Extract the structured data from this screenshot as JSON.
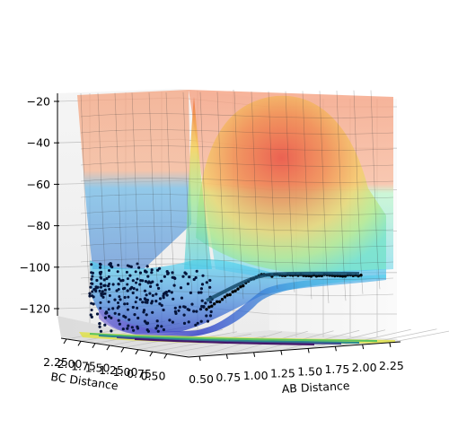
{
  "chart_data": {
    "type": "surface",
    "title": "",
    "xlabel": "AB Distance",
    "ylabel": "BC Distance",
    "zlabel": "",
    "x_ticks": [
      "0.50",
      "0.75",
      "1.00",
      "1.25",
      "1.50",
      "1.75",
      "2.00",
      "2.25"
    ],
    "y_ticks": [
      "2.25",
      "2.00",
      "1.75",
      "1.50",
      "1.25",
      "1.00",
      "0.75",
      "0.50"
    ],
    "y_ticks_display": [
      "2.25",
      "2.00",
      "1.75",
      "1.50",
      "1.25",
      "1.00",
      "0.75",
      "0.50"
    ],
    "z_ticks": [
      "−20",
      "−40",
      "−60",
      "−80",
      "−100",
      "−120"
    ],
    "z_tick_values": [
      -20,
      -40,
      -60,
      -80,
      -100,
      -120
    ],
    "xlim": [
      0.4,
      2.35
    ],
    "ylim": [
      0.4,
      2.35
    ],
    "zlim": [
      -137,
      -18
    ],
    "colormap_surface": "jet",
    "colormap_contour": "viridis",
    "grid": true,
    "trajectory": {
      "description_points_a": [
        [
          0.95,
          -103
        ],
        [
          1.05,
          -103.5
        ],
        [
          1.15,
          -104
        ],
        [
          1.25,
          -104.5
        ],
        [
          1.35,
          -105
        ],
        [
          1.45,
          -105
        ],
        [
          1.55,
          -104.5
        ],
        [
          1.65,
          -105
        ],
        [
          1.75,
          -105.5
        ],
        [
          1.85,
          -105.5
        ],
        [
          1.95,
          -106
        ],
        [
          2.05,
          -106
        ],
        [
          2.15,
          -106
        ]
      ],
      "description_points_b": [
        [
          0.78,
          -118
        ],
        [
          0.8,
          -111
        ],
        [
          0.83,
          -105
        ],
        [
          0.86,
          -100
        ],
        [
          0.88,
          -105
        ]
      ]
    }
  }
}
